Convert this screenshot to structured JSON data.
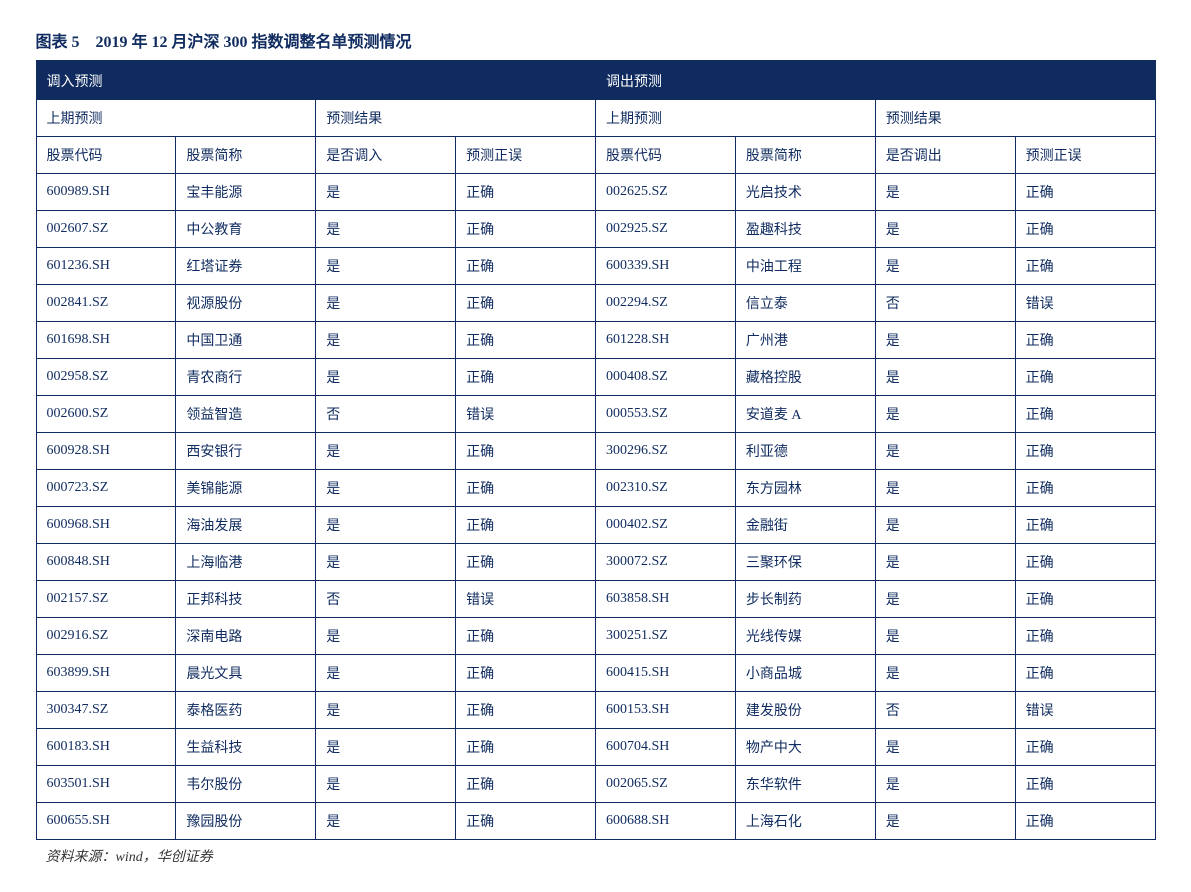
{
  "title": "图表 5　2019 年 12 月沪深 300 指数调整名单预测情况",
  "footer": "资料来源：wind，华创证券",
  "colors": {
    "primary": "#0f2b5f",
    "background": "#ffffff",
    "header_bg": "#0f2b5f",
    "header_text": "#ffffff",
    "cell_text": "#0f2b5f"
  },
  "header1": {
    "in": "调入预测",
    "out": "调出预测"
  },
  "header2": {
    "prev_pred": "上期预测",
    "pred_result": "预测结果"
  },
  "header3": {
    "code": "股票代码",
    "name": "股票简称",
    "is_in": "是否调入",
    "is_out": "是否调出",
    "correct": "预测正误"
  },
  "rows": [
    {
      "in_code": "600989.SH",
      "in_name": "宝丰能源",
      "in_flag": "是",
      "in_correct": "正确",
      "out_code": "002625.SZ",
      "out_name": "光启技术",
      "out_flag": "是",
      "out_correct": "正确"
    },
    {
      "in_code": "002607.SZ",
      "in_name": "中公教育",
      "in_flag": "是",
      "in_correct": "正确",
      "out_code": "002925.SZ",
      "out_name": "盈趣科技",
      "out_flag": "是",
      "out_correct": "正确"
    },
    {
      "in_code": "601236.SH",
      "in_name": "红塔证券",
      "in_flag": "是",
      "in_correct": "正确",
      "out_code": "600339.SH",
      "out_name": "中油工程",
      "out_flag": "是",
      "out_correct": "正确"
    },
    {
      "in_code": "002841.SZ",
      "in_name": "视源股份",
      "in_flag": "是",
      "in_correct": "正确",
      "out_code": "002294.SZ",
      "out_name": "信立泰",
      "out_flag": "否",
      "out_correct": "错误"
    },
    {
      "in_code": "601698.SH",
      "in_name": "中国卫通",
      "in_flag": "是",
      "in_correct": "正确",
      "out_code": "601228.SH",
      "out_name": "广州港",
      "out_flag": "是",
      "out_correct": "正确"
    },
    {
      "in_code": "002958.SZ",
      "in_name": "青农商行",
      "in_flag": "是",
      "in_correct": "正确",
      "out_code": "000408.SZ",
      "out_name": "藏格控股",
      "out_flag": "是",
      "out_correct": "正确"
    },
    {
      "in_code": "002600.SZ",
      "in_name": "领益智造",
      "in_flag": "否",
      "in_correct": "错误",
      "out_code": "000553.SZ",
      "out_name": "安道麦 A",
      "out_flag": "是",
      "out_correct": "正确"
    },
    {
      "in_code": "600928.SH",
      "in_name": "西安银行",
      "in_flag": "是",
      "in_correct": "正确",
      "out_code": "300296.SZ",
      "out_name": "利亚德",
      "out_flag": "是",
      "out_correct": "正确"
    },
    {
      "in_code": "000723.SZ",
      "in_name": "美锦能源",
      "in_flag": "是",
      "in_correct": "正确",
      "out_code": "002310.SZ",
      "out_name": "东方园林",
      "out_flag": "是",
      "out_correct": "正确"
    },
    {
      "in_code": "600968.SH",
      "in_name": "海油发展",
      "in_flag": "是",
      "in_correct": "正确",
      "out_code": "000402.SZ",
      "out_name": "金融街",
      "out_flag": "是",
      "out_correct": "正确"
    },
    {
      "in_code": "600848.SH",
      "in_name": "上海临港",
      "in_flag": "是",
      "in_correct": "正确",
      "out_code": "300072.SZ",
      "out_name": "三聚环保",
      "out_flag": "是",
      "out_correct": "正确"
    },
    {
      "in_code": "002157.SZ",
      "in_name": "正邦科技",
      "in_flag": "否",
      "in_correct": "错误",
      "out_code": "603858.SH",
      "out_name": "步长制药",
      "out_flag": "是",
      "out_correct": "正确"
    },
    {
      "in_code": "002916.SZ",
      "in_name": "深南电路",
      "in_flag": "是",
      "in_correct": "正确",
      "out_code": "300251.SZ",
      "out_name": "光线传媒",
      "out_flag": "是",
      "out_correct": "正确"
    },
    {
      "in_code": "603899.SH",
      "in_name": "晨光文具",
      "in_flag": "是",
      "in_correct": "正确",
      "out_code": "600415.SH",
      "out_name": "小商品城",
      "out_flag": "是",
      "out_correct": "正确"
    },
    {
      "in_code": "300347.SZ",
      "in_name": "泰格医药",
      "in_flag": "是",
      "in_correct": "正确",
      "out_code": "600153.SH",
      "out_name": "建发股份",
      "out_flag": "否",
      "out_correct": "错误"
    },
    {
      "in_code": "600183.SH",
      "in_name": "生益科技",
      "in_flag": "是",
      "in_correct": "正确",
      "out_code": "600704.SH",
      "out_name": "物产中大",
      "out_flag": "是",
      "out_correct": "正确"
    },
    {
      "in_code": "603501.SH",
      "in_name": "韦尔股份",
      "in_flag": "是",
      "in_correct": "正确",
      "out_code": "002065.SZ",
      "out_name": "东华软件",
      "out_flag": "是",
      "out_correct": "正确"
    },
    {
      "in_code": "600655.SH",
      "in_name": "豫园股份",
      "in_flag": "是",
      "in_correct": "正确",
      "out_code": "600688.SH",
      "out_name": "上海石化",
      "out_flag": "是",
      "out_correct": "正确"
    }
  ]
}
